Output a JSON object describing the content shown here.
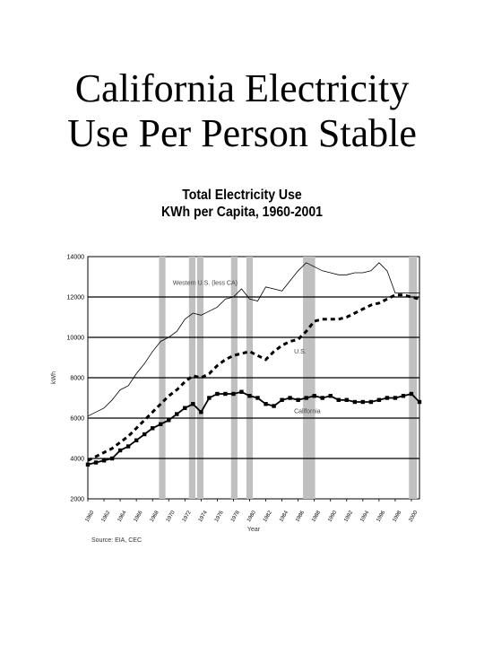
{
  "slide": {
    "title_line1": "California Electricity",
    "title_line2": "Use Per Person Stable"
  },
  "chart_data": {
    "type": "line",
    "title": "Total Electricity Use",
    "subtitle": "KWh per Capita, 1960-2001",
    "xlabel": "Year",
    "ylabel": "kWh",
    "ylim": [
      2000,
      14000
    ],
    "xlim": [
      1960,
      2001
    ],
    "yticks": [
      2000,
      4000,
      6000,
      8000,
      10000,
      12000,
      14000
    ],
    "ytick_labels": [
      "2000",
      "4000",
      "6000",
      "8000",
      "10000",
      "12000",
      "14000"
    ],
    "xticks": [
      1960,
      1962,
      1964,
      1966,
      1968,
      1970,
      1972,
      1974,
      1976,
      1978,
      1980,
      1982,
      1984,
      1986,
      1988,
      1990,
      1992,
      1994,
      1996,
      1998,
      2000
    ],
    "xtick_labels": [
      "1960",
      "1962",
      "1964",
      "1966",
      "1968",
      "1970",
      "1972",
      "1974",
      "1976",
      "1978",
      "1980",
      "1982",
      "1984",
      "1986",
      "1988",
      "1990",
      "1992",
      "1994",
      "1996",
      "1998",
      "2000"
    ],
    "grid": "horizontal",
    "source": "Source: EIA, CEC",
    "shaded_periods": [
      [
        1968.8,
        1969.6
      ],
      [
        1972.5,
        1973.3
      ],
      [
        1973.5,
        1974.3
      ],
      [
        1977.7,
        1978.5
      ],
      [
        1979.6,
        1980.4
      ],
      [
        1986.6,
        1988.1
      ],
      [
        1999.7,
        2000.7
      ]
    ],
    "shade_color": "#c0c0c0",
    "series": [
      {
        "name": "Western U.S. (less CA)",
        "style": "solid-thin",
        "x": [
          1960,
          1961,
          1962,
          1963,
          1964,
          1965,
          1966,
          1967,
          1968,
          1969,
          1970,
          1971,
          1972,
          1973,
          1974,
          1975,
          1976,
          1977,
          1978,
          1979,
          1980,
          1981,
          1982,
          1983,
          1984,
          1985,
          1986,
          1987,
          1988,
          1989,
          1990,
          1991,
          1992,
          1993,
          1994,
          1995,
          1996,
          1997,
          1998,
          1999,
          2000,
          2001
        ],
        "values": [
          6100,
          6300,
          6500,
          6900,
          7400,
          7600,
          8200,
          8700,
          9300,
          9800,
          10000,
          10300,
          10900,
          11200,
          11100,
          11300,
          11500,
          11900,
          12000,
          12400,
          11900,
          11800,
          12500,
          12400,
          12300,
          12800,
          13300,
          13700,
          13500,
          13300,
          13200,
          13100,
          13100,
          13200,
          13200,
          13300,
          13700,
          13300,
          12200,
          12200,
          12200,
          12200
        ]
      },
      {
        "name": "U.S.",
        "style": "dashed-thick",
        "x": [
          1960,
          1961,
          1962,
          1963,
          1964,
          1965,
          1966,
          1967,
          1968,
          1969,
          1970,
          1971,
          1972,
          1973,
          1974,
          1975,
          1976,
          1977,
          1978,
          1979,
          1980,
          1981,
          1982,
          1983,
          1984,
          1985,
          1986,
          1987,
          1988,
          1989,
          1990,
          1991,
          1992,
          1993,
          1994,
          1995,
          1996,
          1997,
          1998,
          1999,
          2000,
          2001
        ],
        "values": [
          3900,
          4100,
          4300,
          4500,
          4800,
          5100,
          5500,
          5900,
          6300,
          6700,
          7100,
          7400,
          7800,
          8100,
          8000,
          8200,
          8600,
          8900,
          9100,
          9200,
          9300,
          9100,
          8900,
          9300,
          9600,
          9800,
          9900,
          10300,
          10800,
          10900,
          10900,
          10900,
          11000,
          11200,
          11400,
          11600,
          11700,
          11900,
          12100,
          12100,
          12000,
          11900
        ]
      },
      {
        "name": "California",
        "style": "solid-markers",
        "x": [
          1960,
          1961,
          1962,
          1963,
          1964,
          1965,
          1966,
          1967,
          1968,
          1969,
          1970,
          1971,
          1972,
          1973,
          1974,
          1975,
          1976,
          1977,
          1978,
          1979,
          1980,
          1981,
          1982,
          1983,
          1984,
          1985,
          1986,
          1987,
          1988,
          1989,
          1990,
          1991,
          1992,
          1993,
          1994,
          1995,
          1996,
          1997,
          1998,
          1999,
          2000,
          2001
        ],
        "values": [
          3700,
          3800,
          3900,
          4000,
          4400,
          4600,
          4900,
          5200,
          5500,
          5700,
          5900,
          6200,
          6500,
          6700,
          6300,
          7000,
          7200,
          7200,
          7200,
          7300,
          7100,
          7000,
          6700,
          6600,
          6900,
          7000,
          6900,
          7000,
          7100,
          7000,
          7100,
          6900,
          6900,
          6800,
          6800,
          6800,
          6900,
          7000,
          7000,
          7100,
          7200,
          6800
        ]
      }
    ]
  }
}
